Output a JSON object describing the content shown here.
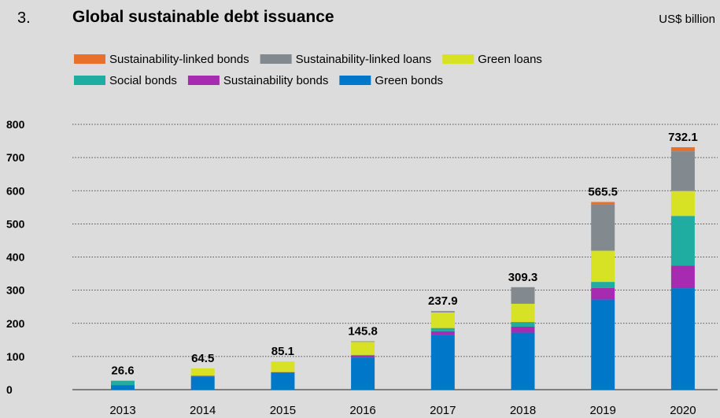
{
  "figure": {
    "number": "3.",
    "title": "Global sustainable debt issuance",
    "unit": "US$ billion"
  },
  "chart_data": {
    "type": "bar",
    "stacked": true,
    "title": "Global sustainable debt issuance",
    "ylabel": "US$ billion",
    "ylim": [
      0,
      800
    ],
    "yticks": [
      0,
      100,
      200,
      300,
      400,
      500,
      600,
      700,
      800
    ],
    "grid": true,
    "legend_position": "top",
    "categories": [
      "2013",
      "2014",
      "2015",
      "2016",
      "2017",
      "2018",
      "2019",
      "2020"
    ],
    "totals": [
      "26.6",
      "64.5",
      "85.1",
      "145.8",
      "237.9",
      "309.3",
      "565.5",
      "732.1"
    ],
    "series": [
      {
        "name": "Green bonds",
        "color": "#0077c8",
        "values": [
          14,
          40,
          50,
          97,
          166,
          172,
          272,
          306
        ]
      },
      {
        "name": "Sustainability bonds",
        "color": "#a62bb0",
        "values": [
          0,
          2,
          3,
          5,
          10,
          18,
          35,
          68
        ]
      },
      {
        "name": "Social bonds",
        "color": "#1fada2",
        "values": [
          13,
          0,
          0,
          3,
          10,
          14,
          18,
          150
        ]
      },
      {
        "name": "Green loans",
        "color": "#d7e224",
        "values": [
          0,
          22,
          32,
          39,
          47,
          55,
          94,
          75
        ]
      },
      {
        "name": "Sustainability-linked loans",
        "color": "#828a8f",
        "values": [
          0,
          0,
          0,
          2,
          4,
          50,
          141,
          120
        ]
      },
      {
        "name": "Sustainability-linked bonds",
        "color": "#e8702a",
        "values": [
          0,
          0,
          0,
          0,
          0,
          0,
          6,
          12
        ]
      }
    ],
    "legend_order": [
      "Sustainability-linked bonds",
      "Sustainability-linked loans",
      "Green loans",
      "Social bonds",
      "Sustainability bonds",
      "Green bonds"
    ]
  }
}
